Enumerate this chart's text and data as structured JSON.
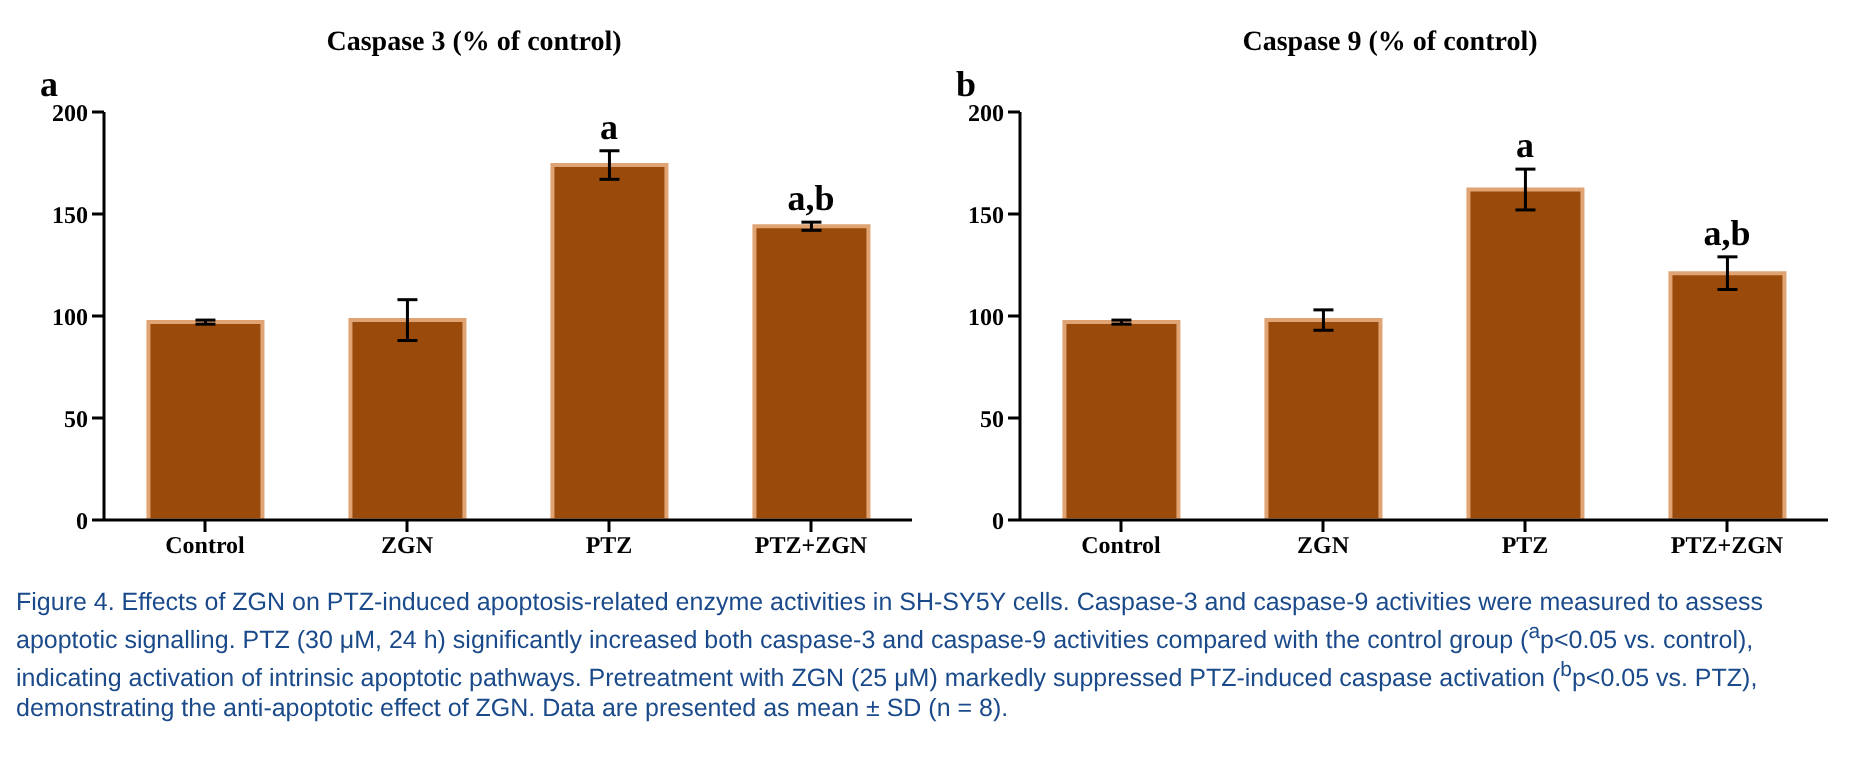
{
  "chart_data": [
    {
      "type": "bar",
      "title": "Caspase 3 (% of control)",
      "categories": [
        "Control",
        "ZGN",
        "PTZ",
        "PTZ+ZGN"
      ],
      "values": [
        97,
        98,
        174,
        144
      ],
      "errors": [
        1,
        10,
        7,
        2
      ],
      "color": "#9a4a0a",
      "ylim": [
        0,
        200
      ],
      "yticks": [
        0,
        50,
        100,
        150,
        200
      ],
      "annotations": [
        "a",
        {
          "text": "a",
          "x": "PTZ",
          "y": 181
        },
        {
          "text": "a,b",
          "x": "PTZ+ZGN",
          "y": 146
        },
        "Figure 4. Effects of ZGN on PTZ-induced apoptosis-related enzyme activities in SH-SY5Y cells. Caspase-3 and caspase-9 activities were measured to assess apoptotic signalling. PTZ (30 μM, 24 h) significantly increased both caspase-3 and caspase-9 activities compared with the control group ($^{a}$p<0.05 vs. control), indicating activation of intrinsic apoptotic pathways. Pretreatment with ZGN (25 μM) markedly suppressed PTZ-induced caspase activation ($^{b}$p<0.05 vs. PTZ), demonstrating the anti-apoptotic effect of ZGN. Data are presented as mean ± SD (n = 8)."
      ]
    },
    {
      "type": "bar",
      "title": "Caspase 9 (% of control)",
      "categories": [
        "Control",
        "ZGN",
        "PTZ",
        "PTZ+ZGN"
      ],
      "values": [
        97,
        98,
        162,
        121
      ],
      "errors": [
        1,
        5,
        10,
        8
      ],
      "color": "#9a4a0a",
      "ylim": [
        0,
        200
      ],
      "yticks": [
        0,
        50,
        100,
        150,
        200
      ],
      "annotations": [
        "b",
        {
          "text": "a",
          "x": "PTZ",
          "y": 172
        },
        {
          "text": "a,b",
          "x": "PTZ+ZGN",
          "y": 129
        }
      ]
    }
  ]
}
